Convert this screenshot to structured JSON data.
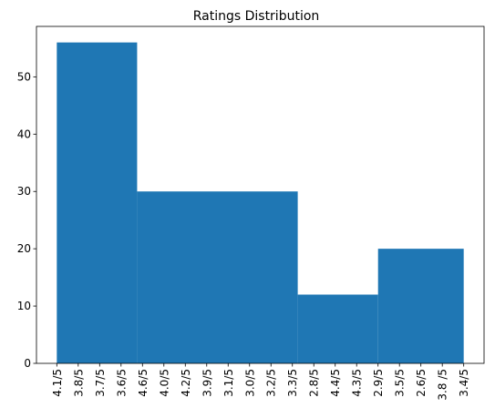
{
  "chart_data": {
    "type": "bar",
    "title": "Ratings Distribution",
    "xlabel": "",
    "ylabel": "",
    "x_tick_labels": [
      "4.1/5",
      "3.8/5",
      "3.7/5",
      "3.6/5",
      "4.6/5",
      "4.0/5",
      "4.2/5",
      "3.9/5",
      "3.1/5",
      "3.0/5",
      "3.2/5",
      "3.3/5",
      "2.8/5",
      "4.4/5",
      "4.3/5",
      "2.9/5",
      "3.5/5",
      "2.6/5",
      "3.8 /5",
      "3.4/5"
    ],
    "bins": [
      {
        "start_tick": 0,
        "end_tick": 3.75,
        "count": 56
      },
      {
        "start_tick": 3.75,
        "end_tick": 11.25,
        "count": 30
      },
      {
        "start_tick": 11.25,
        "end_tick": 15,
        "count": 12
      },
      {
        "start_tick": 15,
        "end_tick": 19,
        "count": 20
      }
    ],
    "x_range": [
      -0.95,
      19.95
    ],
    "ylim": [
      0,
      58.8
    ],
    "y_ticks": [
      0,
      10,
      20,
      30,
      40,
      50
    ],
    "bar_color": "#1f77b4",
    "grid": false,
    "legend": "none"
  }
}
